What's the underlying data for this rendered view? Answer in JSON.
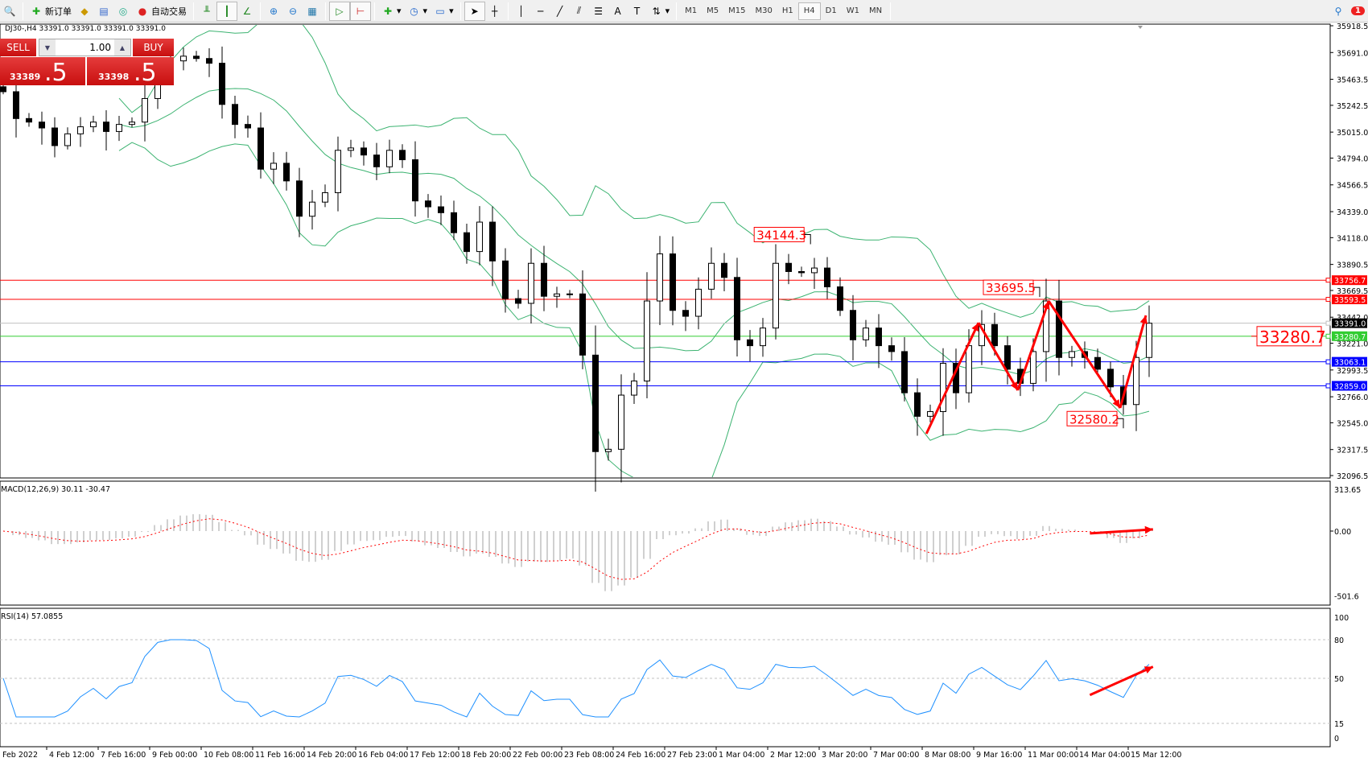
{
  "toolbar": {
    "new_order": "新订单",
    "auto_trade": "自动交易",
    "timeframes": [
      "M1",
      "M5",
      "M15",
      "M30",
      "H1",
      "H4",
      "D1",
      "W1",
      "MN"
    ],
    "active_timeframe": "H4",
    "notification_count": "1"
  },
  "chart": {
    "symbol_line": "DJ30-,H4  33391.0 33391.0 33391.0 33391.0",
    "price_ticks": [
      "35918.5",
      "35691.0",
      "35463.5",
      "35242.5",
      "35015.0",
      "34794.0",
      "34566.5",
      "34339.0",
      "34118.0",
      "33890.5",
      "33669.5",
      "33442.0",
      "33221.0",
      "32993.5",
      "32766.0",
      "32545.0",
      "32317.5",
      "32096.5"
    ],
    "time_labels": [
      "Feb 2022",
      "4 Feb 12:00",
      "7 Feb 16:00",
      "9 Feb 00:00",
      "10 Feb 08:00",
      "11 Feb 16:00",
      "14 Feb 20:00",
      "16 Feb 04:00",
      "17 Feb 12:00",
      "18 Feb 20:00",
      "22 Feb 00:00",
      "23 Feb 08:00",
      "24 Feb 16:00",
      "27 Feb 23:00",
      "1 Mar 04:00",
      "2 Mar 12:00",
      "3 Mar 20:00",
      "7 Mar 00:00",
      "8 Mar 08:00",
      "9 Mar 16:00",
      "11 Mar 00:00",
      "14 Mar 04:00",
      "15 Mar 12:00"
    ],
    "closes": [
      35358,
      35130,
      35100,
      35050,
      34900,
      35000,
      35060,
      35100,
      35020,
      35080,
      35100,
      35300,
      35520,
      35620,
      35660,
      35640,
      35600,
      35250,
      35080,
      35050,
      34700,
      34750,
      34600,
      34300,
      34420,
      34500,
      34860,
      34880,
      34820,
      34720,
      34860,
      34780,
      34430,
      34380,
      34330,
      34160,
      34000,
      34250,
      33920,
      33600,
      33560,
      33900,
      33620,
      33640,
      33640,
      33120,
      32300,
      32320,
      32780,
      32900,
      33580,
      33980,
      33500,
      33450,
      33680,
      33900,
      33780,
      33250,
      33200,
      33350,
      33900,
      33830,
      33820,
      33860,
      33700,
      33500,
      33250,
      33350,
      33200,
      33150,
      32800,
      32600,
      32640,
      33050,
      32800,
      33200,
      33380,
      33200,
      33000,
      32880,
      33150,
      33580,
      33100,
      33150,
      33100,
      33000,
      32850,
      32700,
      33100,
      33391
    ],
    "hlines": [
      {
        "price": "33756.7",
        "color": "#ff0000"
      },
      {
        "price": "33593.5",
        "color": "#ff0000"
      },
      {
        "price": "33391.0",
        "color": "#000000",
        "line": "#c0c0c0"
      },
      {
        "price": "33280.7",
        "color": "#32cd32"
      },
      {
        "price": "33063.1",
        "color": "#0000ff"
      },
      {
        "price": "32859.0",
        "color": "#0000ff"
      }
    ],
    "price_labels": [
      {
        "text": "34144.3",
        "bar": 62.7,
        "price": 34144.3
      },
      {
        "text": "33695.5",
        "bar": 80.5,
        "price": 33695.5
      },
      {
        "text": "32580.2",
        "bar": 87,
        "price": 32580.2
      }
    ],
    "right_label": "33280.7",
    "zigzag": [
      [
        71.7,
        32452
      ],
      [
        75.75,
        33395
      ],
      [
        78.8,
        32821
      ],
      [
        81.2,
        33580
      ],
      [
        86.75,
        32671
      ],
      [
        88.75,
        33457
      ]
    ],
    "colors": {
      "bands": "#3cb371",
      "annot": "#ff0000",
      "macd_hist": "#c0c0c0",
      "macd_signal": "#ff0000",
      "rsi": "#1e90ff"
    }
  },
  "trade_panel": {
    "sell": "SELL",
    "buy": "BUY",
    "lot": "1.00",
    "sell_price_main": "33389",
    "sell_price_big": ".5",
    "buy_price_main": "33398",
    "buy_price_big": ".5"
  },
  "macd": {
    "label": "MACD(12,26,9) 30.11 -30.47",
    "ticks": [
      "313.65",
      "0.00",
      "-501.6"
    ],
    "arrow": [
      [
        84.4,
        -17
      ],
      [
        89.3,
        12
      ]
    ]
  },
  "rsi": {
    "label": "RSI(14) 57.0855",
    "ticks": [
      "100",
      "80",
      "50",
      "15",
      "0"
    ],
    "arrow": [
      [
        84.4,
        37
      ],
      [
        89.3,
        59
      ]
    ]
  }
}
